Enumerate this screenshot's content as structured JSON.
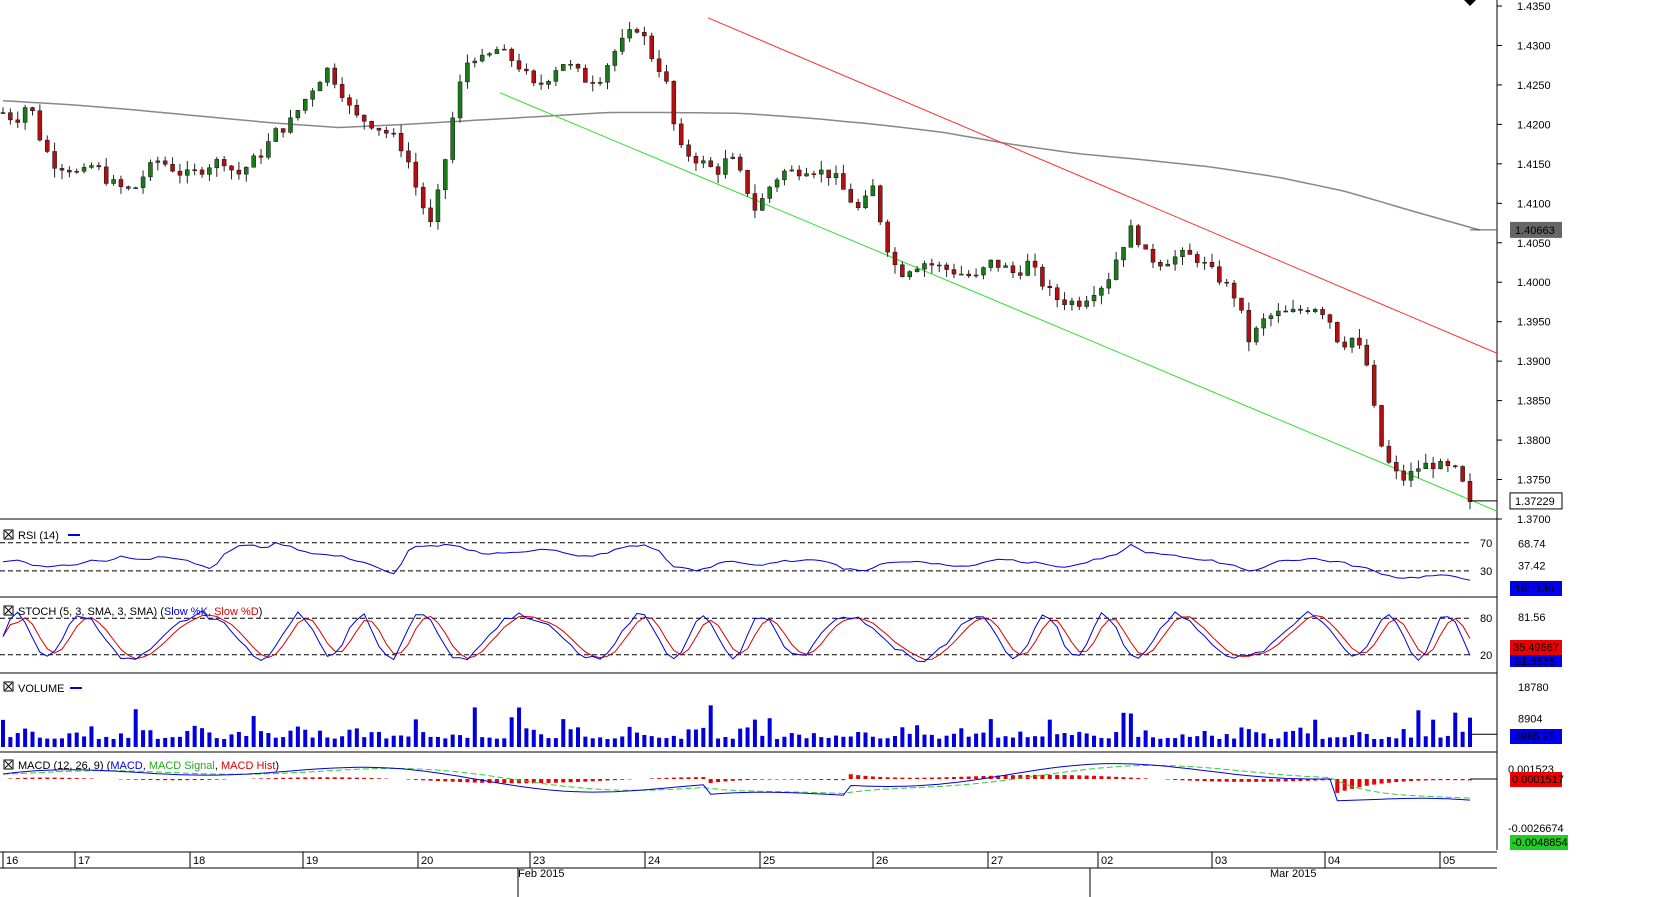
{
  "chart_data": {
    "type": "candlestick",
    "price": {
      "y_ticks": [
        "1.4350",
        "1.4300",
        "1.4250",
        "1.4200",
        "1.4150",
        "1.4100",
        "1.4050",
        "1.4000",
        "1.3950",
        "1.3900",
        "1.3850",
        "1.3800",
        "1.3750",
        "1.3700"
      ],
      "ylim": [
        1.37,
        1.435
      ],
      "current_label": "1.37229",
      "ma_label": "1.40663",
      "ma_series": [
        1.423,
        1.4225,
        1.4218,
        1.421,
        1.4202,
        1.4196,
        1.42,
        1.4205,
        1.421,
        1.4215,
        1.4215,
        1.4214,
        1.4208,
        1.42,
        1.419,
        1.4175,
        1.4163,
        1.4155,
        1.4146,
        1.4133,
        1.4115,
        1.409,
        1.4066
      ],
      "channel_upper": {
        "from": [
          1.4335,
          "Feb 24"
        ],
        "to": [
          1.391,
          "right edge"
        ]
      },
      "channel_lower": {
        "from": [
          1.424,
          "Feb 20"
        ],
        "to": [
          1.371,
          "right edge"
        ]
      },
      "closes": [
        1.4215,
        1.4205,
        1.423,
        1.4175,
        1.415,
        1.4145,
        1.4135,
        1.415,
        1.413,
        1.412,
        1.4115,
        1.414,
        1.4155,
        1.4145,
        1.4135,
        1.414,
        1.415,
        1.4155,
        1.4135,
        1.415,
        1.4165,
        1.419,
        1.42,
        1.4225,
        1.425,
        1.427,
        1.4245,
        1.421,
        1.4205,
        1.4195,
        1.4185,
        1.4165,
        1.411,
        1.407,
        1.415,
        1.424,
        1.429,
        1.428,
        1.4295,
        1.4285,
        1.427,
        1.4245,
        1.426,
        1.428,
        1.427,
        1.4255,
        1.426,
        1.429,
        1.431,
        1.4325,
        1.4285,
        1.426,
        1.417,
        1.416,
        1.415,
        1.414,
        1.416,
        1.413,
        1.409,
        1.412,
        1.414,
        1.414,
        1.4145,
        1.414,
        1.4135,
        1.411,
        1.409,
        1.412,
        1.405,
        1.401,
        1.402,
        1.4025,
        1.402,
        1.4015,
        1.401,
        1.4005,
        1.4025,
        1.402,
        1.401,
        1.4025,
        1.4,
        1.398,
        1.3975,
        1.3975,
        1.399,
        1.4,
        1.404,
        1.407,
        1.4035,
        1.4025,
        1.403,
        1.4035,
        1.403,
        1.4015,
        1.4,
        1.398,
        1.3925,
        1.395,
        1.396,
        1.396,
        1.3965,
        1.397,
        1.396,
        1.392,
        1.393,
        1.39,
        1.38,
        1.376,
        1.375,
        1.3765,
        1.377,
        1.3765,
        1.376,
        1.3722
      ]
    },
    "rsi": {
      "title": "RSI (14)",
      "levels": [
        "70",
        "30"
      ],
      "axis_labels": [
        "68.74",
        "37.42"
      ],
      "current": "18.1136",
      "values": [
        42,
        46,
        40,
        36,
        38,
        37,
        42,
        46,
        44,
        50,
        47,
        45,
        52,
        49,
        46,
        38,
        34,
        55,
        66,
        66,
        63,
        70,
        64,
        58,
        54,
        52,
        50,
        45,
        40,
        30,
        24,
        62,
        66,
        64,
        67,
        63,
        58,
        54,
        56,
        55,
        58,
        62,
        60,
        54,
        50,
        52,
        54,
        62,
        66,
        66,
        60,
        38,
        33,
        30,
        35,
        44,
        44,
        39,
        38,
        41,
        45,
        43,
        47,
        44,
        34,
        33,
        28,
        41,
        43,
        42,
        44,
        41,
        38,
        37,
        36,
        44,
        47,
        46,
        42,
        44,
        36,
        36,
        38,
        44,
        48,
        52,
        68,
        58,
        54,
        52,
        50,
        47,
        46,
        41,
        39,
        30,
        30,
        44,
        45,
        46,
        48,
        44,
        43,
        38,
        34,
        28,
        22,
        20,
        21,
        23,
        23,
        22,
        18
      ]
    },
    "stoch": {
      "title": "STOCH (5, 3, SMA, 3, SMA)",
      "legend": [
        "Slow %K",
        "Slow %D"
      ],
      "levels": [
        "80",
        "20"
      ],
      "axis_labels": [
        "81.56"
      ],
      "current_d": "35.49667",
      "current_k": "21.5635"
    },
    "volume": {
      "title": "VOLUME",
      "axis_labels": [
        "18780",
        "8904"
      ],
      "current": "3985.95"
    },
    "macd": {
      "title": "MACD (12, 26, 9)",
      "legend": [
        "MACD",
        "MACD Signal",
        "MACD Hist"
      ],
      "axis_labels": [
        "0.001523",
        "-0.0026674"
      ],
      "current_hist": "0.0001517",
      "current_macd": "-0.0048854"
    },
    "x_axis": {
      "day_ticks": [
        "16",
        "17",
        "18",
        "19",
        "20",
        "23",
        "24",
        "25",
        "26",
        "27",
        "02",
        "03",
        "04",
        "05"
      ],
      "month_labels": [
        "Feb 2015",
        "Mar 2015"
      ]
    }
  },
  "colors": {
    "up": "#1a7a1a",
    "down": "#b01010",
    "ma": "#888888",
    "channel_upper": "#ff3030",
    "channel_lower": "#33dd33",
    "rsi": "#0000dd",
    "stoch_k": "#0000dd",
    "stoch_d": "#dd0000",
    "volume": "#0000dd",
    "macd": "#0000dd",
    "macd_signal": "#33cc33",
    "macd_hist": "#ee0000"
  }
}
